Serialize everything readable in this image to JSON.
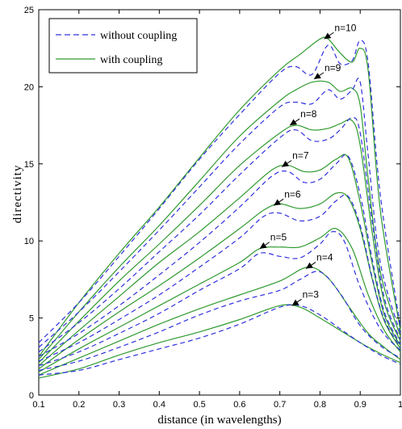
{
  "chart_data": {
    "type": "line",
    "title": "",
    "xlabel": "distance (in wavelengths)",
    "ylabel": "directivity",
    "xlim": [
      0.1,
      1.0
    ],
    "ylim": [
      0,
      25
    ],
    "xticks": [
      0.1,
      0.2,
      0.3,
      0.4,
      0.5,
      0.6,
      0.7,
      0.8,
      0.9,
      1.0
    ],
    "xtick_labels": [
      "0.1",
      "0.2",
      "0.3",
      "0.4",
      "0.5",
      "0.6",
      "0.7",
      "0.8",
      "0.9",
      "1"
    ],
    "yticks": [
      0,
      5,
      10,
      15,
      20,
      25
    ],
    "ytick_labels": [
      "0",
      "5",
      "10",
      "15",
      "20",
      "25"
    ],
    "grid": false,
    "legend": {
      "placement": "top-left",
      "entries": [
        {
          "label": "without coupling",
          "style": "dashed",
          "color": "#3030e0"
        },
        {
          "label": "with coupling",
          "style": "solid",
          "color": "#2f9a2f"
        }
      ]
    },
    "colors": {
      "without_coupling": "#3030e0",
      "with_coupling": "#2f9a2f"
    },
    "annotations": [
      {
        "text": "n=3",
        "x": 0.73,
        "y": 5.8
      },
      {
        "text": "n=4",
        "x": 0.765,
        "y": 8.2
      },
      {
        "text": "n=5",
        "x": 0.65,
        "y": 9.5
      },
      {
        "text": "n=6",
        "x": 0.685,
        "y": 12.3
      },
      {
        "text": "n=7",
        "x": 0.705,
        "y": 14.8
      },
      {
        "text": "n=8",
        "x": 0.725,
        "y": 17.5
      },
      {
        "text": "n=9",
        "x": 0.785,
        "y": 20.5
      },
      {
        "text": "n=10",
        "x": 0.81,
        "y": 23.1
      }
    ],
    "series": [
      {
        "coupling": "with",
        "n": 3,
        "x": [
          0.1,
          0.2,
          0.3,
          0.4,
          0.5,
          0.6,
          0.7,
          0.75,
          0.8,
          0.85,
          0.9,
          0.95,
          1.0
        ],
        "y": [
          1.1,
          1.7,
          2.6,
          3.4,
          4.1,
          4.9,
          5.8,
          5.7,
          5.0,
          4.2,
          3.4,
          2.7,
          2.1
        ]
      },
      {
        "coupling": "with",
        "n": 4,
        "x": [
          0.1,
          0.2,
          0.3,
          0.4,
          0.5,
          0.6,
          0.7,
          0.77,
          0.82,
          0.87,
          0.92,
          0.96,
          1.0
        ],
        "y": [
          1.3,
          2.4,
          3.5,
          4.6,
          5.6,
          6.5,
          7.4,
          8.3,
          7.6,
          5.8,
          4.0,
          3.1,
          2.3
        ]
      },
      {
        "coupling": "with",
        "n": 5,
        "x": [
          0.1,
          0.2,
          0.3,
          0.4,
          0.5,
          0.6,
          0.65,
          0.7,
          0.75,
          0.8,
          0.84,
          0.88,
          0.92,
          0.96,
          1.0
        ],
        "y": [
          1.5,
          3.0,
          4.4,
          5.8,
          7.2,
          8.6,
          9.5,
          9.6,
          9.6,
          10.2,
          10.8,
          9.5,
          6.5,
          4.2,
          2.8
        ]
      },
      {
        "coupling": "with",
        "n": 6,
        "x": [
          0.1,
          0.2,
          0.3,
          0.4,
          0.5,
          0.6,
          0.66,
          0.7,
          0.75,
          0.8,
          0.84,
          0.87,
          0.9,
          0.93,
          0.96,
          1.0
        ],
        "y": [
          1.7,
          3.6,
          5.4,
          7.1,
          8.9,
          10.8,
          12.0,
          12.4,
          12.1,
          12.4,
          13.1,
          12.8,
          10.8,
          7.5,
          4.8,
          3.0
        ]
      },
      {
        "coupling": "with",
        "n": 7,
        "x": [
          0.1,
          0.2,
          0.3,
          0.4,
          0.5,
          0.6,
          0.68,
          0.72,
          0.76,
          0.8,
          0.84,
          0.87,
          0.9,
          0.93,
          0.96,
          1.0
        ],
        "y": [
          1.9,
          4.2,
          6.4,
          8.6,
          10.6,
          12.8,
          14.6,
          14.9,
          14.5,
          14.6,
          15.3,
          15.4,
          12.5,
          8.5,
          5.2,
          3.2
        ]
      },
      {
        "coupling": "with",
        "n": 8,
        "x": [
          0.1,
          0.2,
          0.3,
          0.4,
          0.5,
          0.6,
          0.7,
          0.74,
          0.78,
          0.82,
          0.85,
          0.88,
          0.9,
          0.93,
          0.96,
          1.0
        ],
        "y": [
          2.1,
          4.8,
          7.4,
          9.8,
          12.3,
          14.9,
          17.0,
          17.5,
          17.2,
          17.3,
          17.6,
          17.8,
          16.2,
          10.5,
          6.0,
          3.5
        ]
      },
      {
        "coupling": "with",
        "n": 9,
        "x": [
          0.1,
          0.2,
          0.3,
          0.4,
          0.5,
          0.6,
          0.7,
          0.74,
          0.78,
          0.82,
          0.85,
          0.88,
          0.9,
          0.92,
          0.95,
          1.0
        ],
        "y": [
          2.3,
          5.4,
          8.3,
          11.0,
          13.9,
          16.8,
          19.1,
          19.8,
          20.3,
          20.3,
          19.7,
          19.9,
          18.8,
          14.0,
          8.0,
          3.8
        ]
      },
      {
        "coupling": "with",
        "n": 10,
        "x": [
          0.1,
          0.2,
          0.3,
          0.4,
          0.5,
          0.6,
          0.7,
          0.75,
          0.8,
          0.82,
          0.85,
          0.88,
          0.9,
          0.92,
          0.95,
          1.0
        ],
        "y": [
          2.5,
          6.0,
          9.2,
          12.2,
          15.4,
          18.5,
          21.1,
          22.1,
          23.1,
          23.1,
          22.2,
          21.6,
          22.5,
          21.0,
          12.0,
          4.2
        ]
      },
      {
        "coupling": "without",
        "n": 3,
        "x": [
          0.1,
          0.2,
          0.3,
          0.4,
          0.5,
          0.6,
          0.7,
          0.75,
          0.8,
          0.85,
          0.9,
          0.95,
          1.0
        ],
        "y": [
          1.3,
          1.6,
          2.3,
          3.0,
          3.7,
          4.6,
          5.7,
          5.8,
          5.2,
          4.3,
          3.4,
          2.6,
          2.0
        ]
      },
      {
        "coupling": "without",
        "n": 4,
        "x": [
          0.1,
          0.2,
          0.3,
          0.4,
          0.5,
          0.6,
          0.7,
          0.75,
          0.8,
          0.85,
          0.9,
          0.95,
          1.0
        ],
        "y": [
          1.6,
          2.2,
          3.1,
          4.1,
          5.2,
          6.1,
          6.8,
          7.5,
          8.0,
          6.6,
          4.5,
          3.2,
          2.4
        ]
      },
      {
        "coupling": "without",
        "n": 5,
        "x": [
          0.1,
          0.2,
          0.3,
          0.4,
          0.5,
          0.6,
          0.65,
          0.7,
          0.75,
          0.8,
          0.83,
          0.86,
          0.9,
          0.95,
          1.0
        ],
        "y": [
          1.9,
          2.8,
          4.0,
          5.3,
          6.8,
          8.2,
          9.2,
          9.0,
          8.9,
          9.8,
          10.6,
          10.0,
          7.0,
          4.3,
          2.9
        ]
      },
      {
        "coupling": "without",
        "n": 6,
        "x": [
          0.1,
          0.2,
          0.3,
          0.4,
          0.5,
          0.6,
          0.66,
          0.7,
          0.75,
          0.8,
          0.84,
          0.87,
          0.9,
          0.93,
          0.96,
          1.0
        ],
        "y": [
          2.2,
          3.4,
          4.9,
          6.5,
          8.3,
          10.2,
          11.6,
          11.8,
          11.3,
          11.6,
          12.6,
          12.9,
          11.0,
          7.6,
          4.9,
          3.1
        ]
      },
      {
        "coupling": "without",
        "n": 7,
        "x": [
          0.1,
          0.2,
          0.3,
          0.4,
          0.5,
          0.6,
          0.68,
          0.72,
          0.76,
          0.8,
          0.84,
          0.87,
          0.9,
          0.93,
          0.96,
          1.0
        ],
        "y": [
          2.5,
          4.0,
          5.8,
          7.8,
          9.9,
          12.2,
          14.2,
          14.5,
          13.8,
          14.0,
          15.0,
          15.5,
          13.0,
          8.8,
          5.4,
          3.3
        ]
      },
      {
        "coupling": "without",
        "n": 8,
        "x": [
          0.1,
          0.2,
          0.3,
          0.4,
          0.5,
          0.6,
          0.7,
          0.74,
          0.78,
          0.82,
          0.85,
          0.88,
          0.9,
          0.93,
          0.96,
          1.0
        ],
        "y": [
          2.8,
          4.7,
          6.9,
          9.3,
          11.7,
          14.3,
          16.7,
          17.2,
          16.5,
          16.6,
          17.2,
          18.0,
          17.0,
          11.2,
          6.3,
          3.6
        ]
      },
      {
        "coupling": "without",
        "n": 9,
        "x": [
          0.1,
          0.2,
          0.3,
          0.4,
          0.5,
          0.6,
          0.7,
          0.74,
          0.78,
          0.82,
          0.85,
          0.88,
          0.9,
          0.92,
          0.95,
          1.0
        ],
        "y": [
          3.1,
          5.4,
          8.0,
          10.7,
          13.5,
          16.3,
          18.7,
          19.0,
          18.9,
          19.8,
          19.2,
          19.8,
          20.3,
          15.5,
          8.6,
          4.0
        ]
      },
      {
        "coupling": "without",
        "n": 10,
        "x": [
          0.1,
          0.2,
          0.3,
          0.4,
          0.5,
          0.6,
          0.7,
          0.74,
          0.78,
          0.82,
          0.85,
          0.88,
          0.9,
          0.92,
          0.95,
          1.0
        ],
        "y": [
          3.4,
          6.0,
          9.0,
          12.1,
          15.3,
          18.2,
          20.9,
          21.3,
          20.8,
          22.7,
          21.5,
          21.7,
          23.0,
          21.5,
          13.0,
          4.4
        ]
      }
    ]
  }
}
